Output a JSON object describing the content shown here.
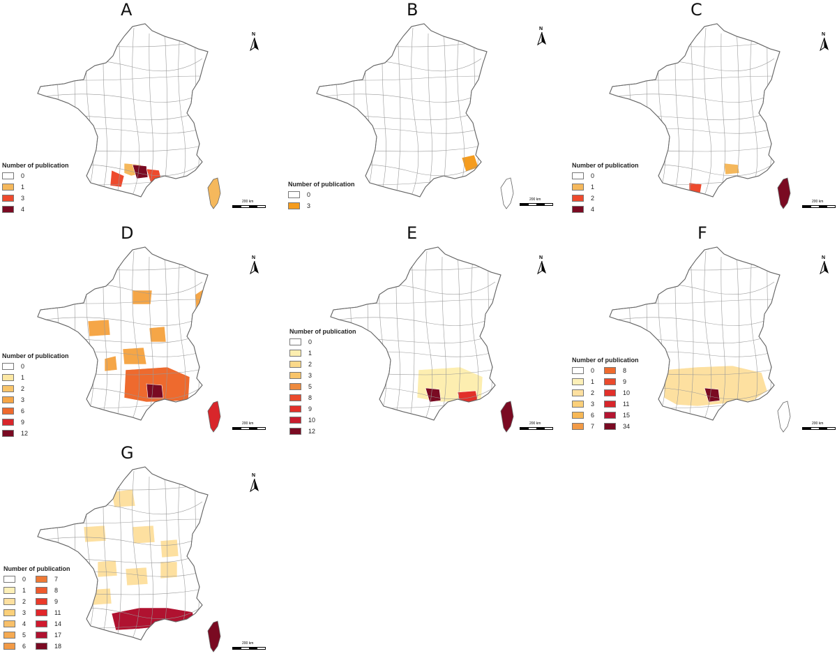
{
  "legend_title": "Number of publication",
  "scalebar_label": "200 km",
  "north_label": "N",
  "panels": [
    {
      "letter": "A",
      "legend": [
        {
          "label": "0",
          "color": "#ffffff"
        },
        {
          "label": "1",
          "color": "#f5b85c"
        },
        {
          "label": "3",
          "color": "#ee4a2d"
        },
        {
          "label": "4",
          "color": "#7a0a22"
        }
      ],
      "highlighted": [
        {
          "region": "languedoc-west",
          "color": "#ee4a2d"
        },
        {
          "region": "languedoc-center",
          "color": "#f5b85c"
        },
        {
          "region": "herault",
          "color": "#7a0a22"
        },
        {
          "region": "gard-south",
          "color": "#ee4a2d"
        },
        {
          "region": "corsica",
          "color": "#f5b85c"
        }
      ]
    },
    {
      "letter": "B",
      "legend": [
        {
          "label": "0",
          "color": "#ffffff"
        },
        {
          "label": "3",
          "color": "#f59c1e"
        }
      ],
      "highlighted": [
        {
          "region": "alpes-maritimes",
          "color": "#f59c1e"
        }
      ]
    },
    {
      "letter": "C",
      "legend": [
        {
          "label": "0",
          "color": "#ffffff"
        },
        {
          "label": "1",
          "color": "#f5b85c"
        },
        {
          "label": "2",
          "color": "#ee4a2d"
        },
        {
          "label": "4",
          "color": "#7a0a22"
        }
      ],
      "highlighted": [
        {
          "region": "pyrenees-orientales",
          "color": "#ee4a2d"
        },
        {
          "region": "bouches-du-rhone",
          "color": "#f5b85c"
        },
        {
          "region": "corsica",
          "color": "#7a0a22"
        }
      ]
    },
    {
      "letter": "D",
      "legend": [
        {
          "label": "0",
          "color": "#ffffff"
        },
        {
          "label": "1",
          "color": "#fde8a4"
        },
        {
          "label": "2",
          "color": "#f8c46a"
        },
        {
          "label": "3",
          "color": "#f5a647"
        },
        {
          "label": "6",
          "color": "#ee6a2e"
        },
        {
          "label": "9",
          "color": "#d8262b"
        },
        {
          "label": "12",
          "color": "#7a0a22"
        }
      ],
      "highlighted": [
        {
          "region": "center-scattered",
          "color": "#f5a647"
        },
        {
          "region": "south-east",
          "color": "#ee6a2e"
        },
        {
          "region": "gard",
          "color": "#7a0a22"
        },
        {
          "region": "corsica",
          "color": "#d8262b"
        }
      ]
    },
    {
      "letter": "E",
      "legend": [
        {
          "label": "0",
          "color": "#ffffff"
        },
        {
          "label": "1",
          "color": "#fdeeb0"
        },
        {
          "label": "2",
          "color": "#fbd98a"
        },
        {
          "label": "3",
          "color": "#f8c46a"
        },
        {
          "label": "5",
          "color": "#ee8a3e"
        },
        {
          "label": "8",
          "color": "#ea4a2d"
        },
        {
          "label": "9",
          "color": "#e2302a"
        },
        {
          "label": "10",
          "color": "#c81d2e"
        },
        {
          "label": "12",
          "color": "#7a0a22"
        }
      ],
      "highlighted": [
        {
          "region": "south-east",
          "color": "#fdeeb0"
        },
        {
          "region": "herault",
          "color": "#7a0a22"
        },
        {
          "region": "var",
          "color": "#e2302a"
        },
        {
          "region": "corsica",
          "color": "#7a0a22"
        }
      ]
    },
    {
      "letter": "F",
      "legend": [
        {
          "label": "0",
          "color": "#ffffff"
        },
        {
          "label": "1",
          "color": "#fdf0b8"
        },
        {
          "label": "2",
          "color": "#fde0a0"
        },
        {
          "label": "3",
          "color": "#fbd07a"
        },
        {
          "label": "6",
          "color": "#f7b856"
        },
        {
          "label": "7",
          "color": "#f29a46"
        },
        {
          "label": "8",
          "color": "#ee6a2e"
        },
        {
          "label": "9",
          "color": "#ea4a2d"
        },
        {
          "label": "10",
          "color": "#e2302a"
        },
        {
          "label": "11",
          "color": "#d8262b"
        },
        {
          "label": "15",
          "color": "#b51531"
        },
        {
          "label": "34",
          "color": "#7a0a22"
        }
      ],
      "highlighted": [
        {
          "region": "south-band",
          "color": "#fde0a0"
        },
        {
          "region": "herault",
          "color": "#7a0a22"
        }
      ]
    },
    {
      "letter": "G",
      "legend": [
        {
          "label": "0",
          "color": "#ffffff"
        },
        {
          "label": "1",
          "color": "#fdf0b8"
        },
        {
          "label": "2",
          "color": "#fde0a0"
        },
        {
          "label": "3",
          "color": "#fbd07a"
        },
        {
          "label": "4",
          "color": "#f8c06a"
        },
        {
          "label": "5",
          "color": "#f5aa52"
        },
        {
          "label": "6",
          "color": "#f29a46"
        },
        {
          "label": "7",
          "color": "#ee7a36"
        },
        {
          "label": "8",
          "color": "#ee5a2e"
        },
        {
          "label": "9",
          "color": "#ea3a2a"
        },
        {
          "label": "11",
          "color": "#e2262a"
        },
        {
          "label": "14",
          "color": "#d01a2e"
        },
        {
          "label": "17",
          "color": "#b01230"
        },
        {
          "label": "18",
          "color": "#7a0a22"
        }
      ],
      "highlighted": [
        {
          "region": "whole-country-scattered",
          "color": "#fde0a0"
        },
        {
          "region": "south-coast",
          "color": "#b01230"
        },
        {
          "region": "corsica",
          "color": "#7a0a22"
        }
      ]
    }
  ]
}
